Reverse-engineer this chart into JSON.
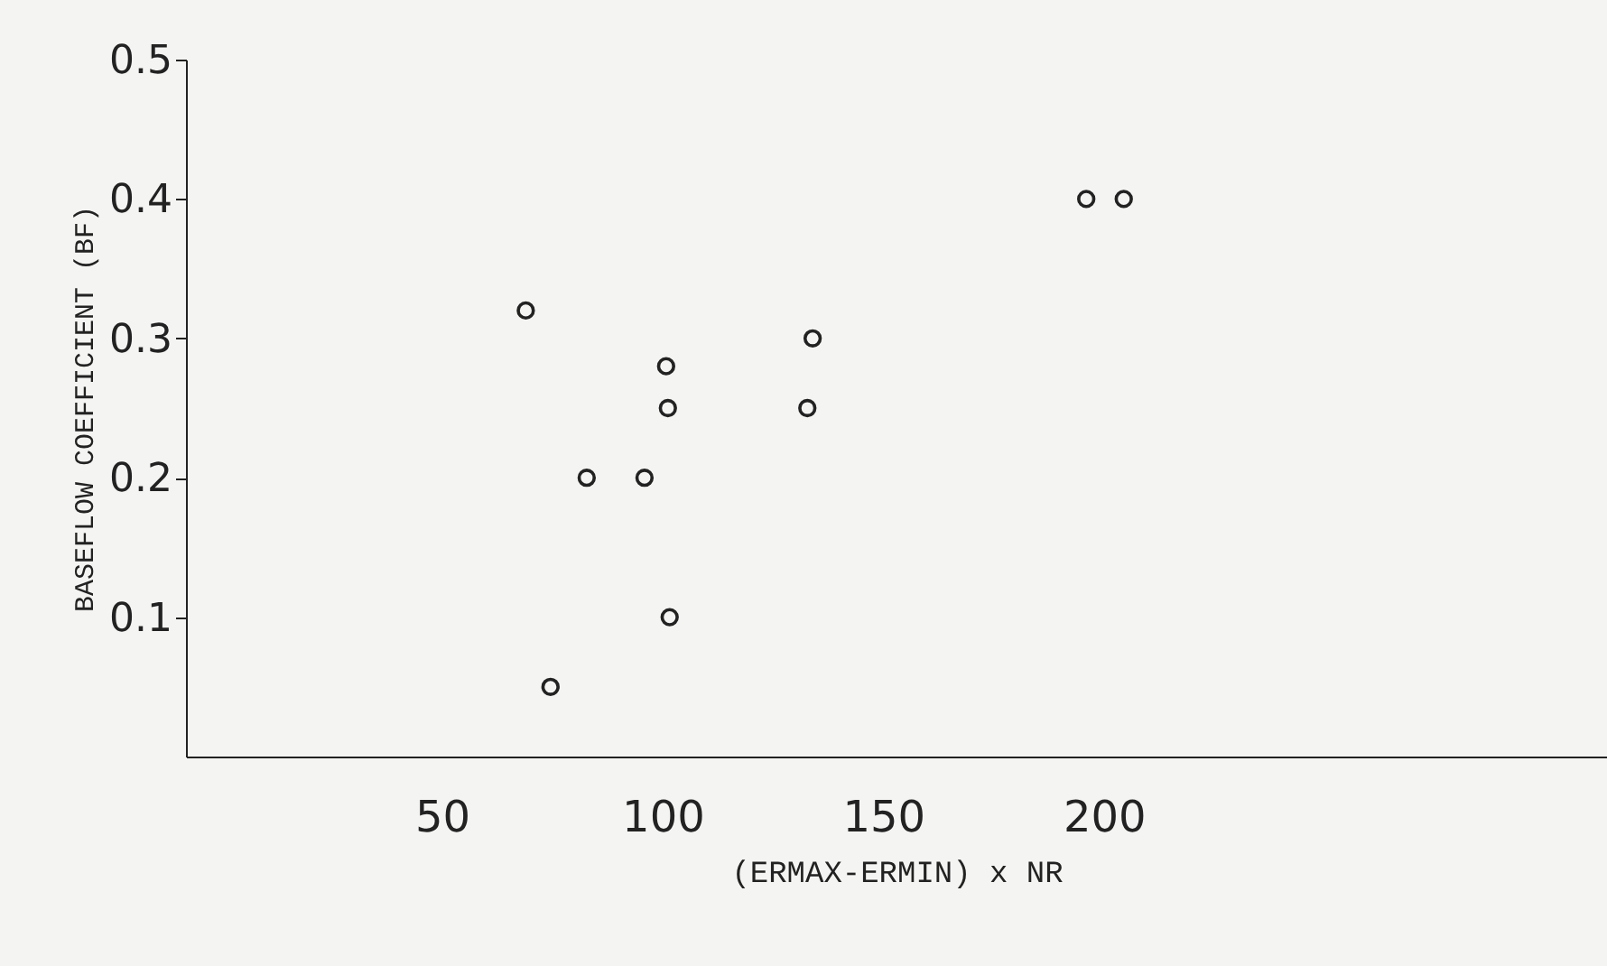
{
  "chart_data": {
    "type": "scatter",
    "xlabel": "(ERMAX-ERMIN) x NR",
    "ylabel": "BASEFLOW COEFFICIENT (BF)",
    "x": [
      69,
      74.6,
      82.8,
      95.9,
      100.8,
      101.2,
      101.6,
      132.8,
      134,
      196,
      204.5
    ],
    "series": [
      {
        "color": "#222222",
        "values": [
          0.32,
          0.05,
          0.2,
          0.2,
          0.28,
          0.25,
          0.1,
          0.25,
          0.3,
          0.4,
          0.4
        ]
      }
    ],
    "xlim": [
      -8,
      314
    ],
    "xticks": [
      50,
      100,
      150,
      200
    ],
    "ylim": [
      0,
      0.5
    ],
    "yticks": [
      0.1,
      0.2,
      0.3,
      0.4,
      0.5
    ],
    "marker": "circle",
    "grid": false
  }
}
